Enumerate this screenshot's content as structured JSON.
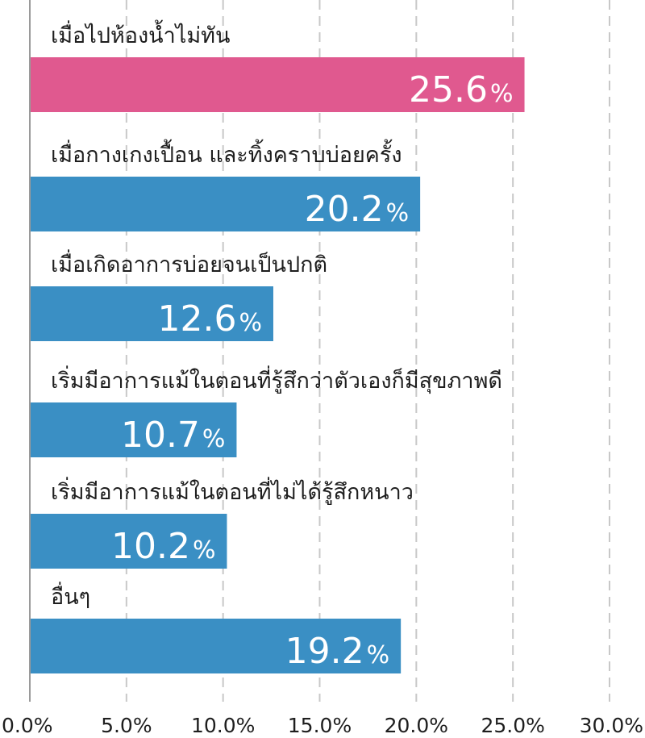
{
  "chart_data": {
    "type": "bar",
    "orientation": "horizontal",
    "categories": [
      "เมื่อไปห้องน้ำไม่ทัน",
      "เมื่อกางเกงเปื้อน และทิ้งคราบบ่อยครั้ง",
      "เมื่อเกิดอาการบ่อยจนเป็นปกติ",
      "เริ่มมีอาการแม้ในตอนที่รู้สึกว่าตัวเองก็มีสุขภาพดี",
      "เริ่มมีอาการแม้ในตอนที่ไม่ได้รู้สึกหนาว",
      "อื่นๆ"
    ],
    "values": [
      25.6,
      20.2,
      12.6,
      10.7,
      10.2,
      19.2
    ],
    "value_labels": [
      "25.6",
      "20.2",
      "12.6",
      "10.7",
      "10.2",
      "19.2"
    ],
    "value_suffix": "%",
    "xlim": [
      0,
      30
    ],
    "ticks": [
      "0.0%",
      "5.0%",
      "10.0%",
      "15.0%",
      "20.0%",
      "25.0%",
      "30.0%"
    ],
    "grid": "vertical dashed",
    "colors": {
      "highlight": "#e0598f",
      "default": "#3a8fc4",
      "grid": "#c8c8c8",
      "axis": "#9a9a9a"
    },
    "highlight_index": 0
  }
}
